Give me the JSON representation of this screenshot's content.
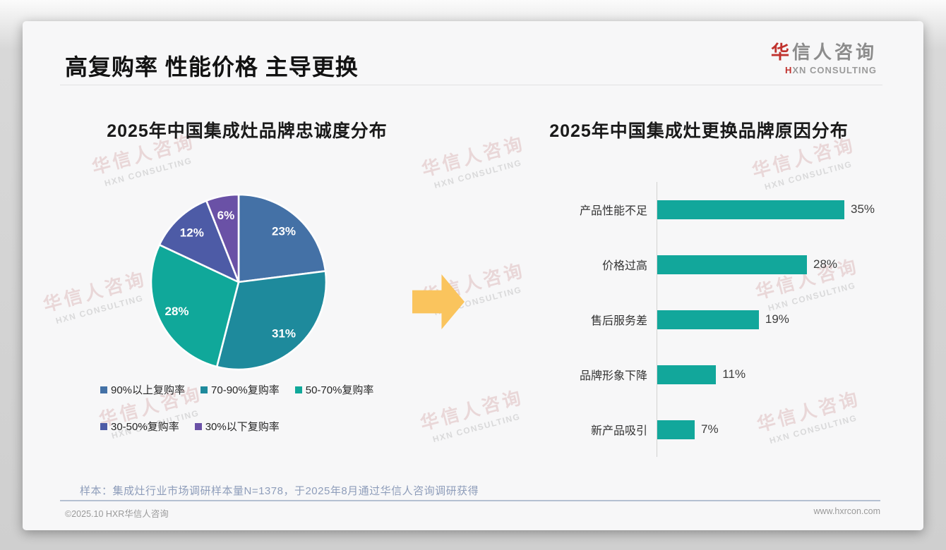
{
  "page": {
    "title": "高复购率 性能价格 主导更换",
    "logo": {
      "cn_first": "华",
      "cn_rest": "信人咨询",
      "en_first": "H",
      "en_rest": "XN CONSULTING"
    },
    "watermark": {
      "line1": "华信人咨询",
      "line2": "HXN CONSULTING"
    },
    "sample_note": "样本：集成灶行业市场调研样本量N=1378，于2025年8月通过华信人咨询调研获得",
    "footer": {
      "copyright": "©2025.10 HXR华信人咨询",
      "website": "www.hxrcon.com"
    }
  },
  "chart_data": [
    {
      "type": "pie",
      "title": "2025年中国集成灶品牌忠诚度分布",
      "labels": [
        "90%以上复购率",
        "70-90%复购率",
        "50-70%复购率",
        "30-50%复购率",
        "30%以下复购率"
      ],
      "values": [
        23,
        31,
        28,
        12,
        6
      ],
      "data_labels": [
        "23%",
        "31%",
        "28%",
        "12%",
        "6%"
      ],
      "colors": [
        "#4471a6",
        "#1e8a9c",
        "#10a89a",
        "#4d5ba6",
        "#6a51a6"
      ],
      "start_angle_deg": 0,
      "direction": "clockwise",
      "legend_position": "bottom",
      "slice_border_color": "#ffffff"
    },
    {
      "type": "bar",
      "orientation": "horizontal",
      "title": "2025年中国集成灶更换品牌原因分布",
      "categories": [
        "产品性能不足",
        "价格过高",
        "售后服务差",
        "品牌形象下降",
        "新产品吸引"
      ],
      "values": [
        35,
        28,
        19,
        11,
        7
      ],
      "value_labels": [
        "35%",
        "28%",
        "19%",
        "11%",
        "7%"
      ],
      "bar_color": "#12a79b",
      "xlim": [
        0,
        35
      ],
      "grid": false,
      "axis_line_color": "#d2d2d2"
    }
  ],
  "accent_colors": {
    "arrow_yellow": "#fac45d",
    "logo_red": "#c0322e"
  }
}
